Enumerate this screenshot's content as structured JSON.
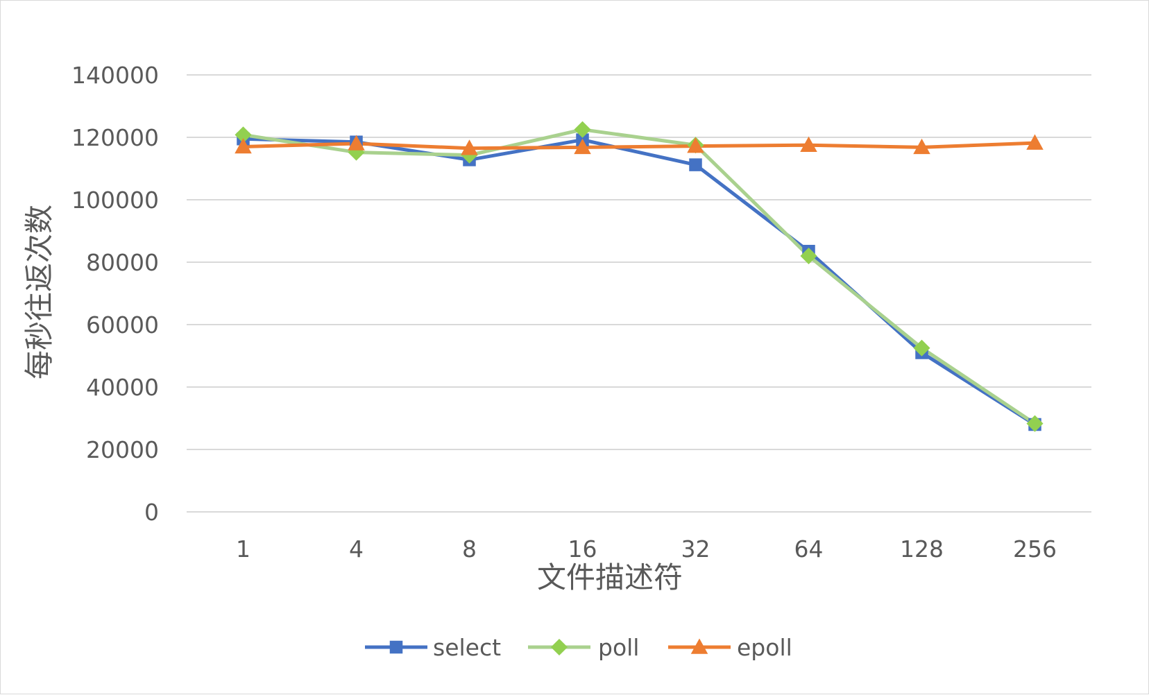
{
  "chart_data": {
    "type": "line",
    "title": "",
    "xlabel": "文件描述符",
    "ylabel": "每秒往返次数",
    "categories": [
      "1",
      "4",
      "8",
      "16",
      "32",
      "64",
      "128",
      "256"
    ],
    "ylim": [
      0,
      140000
    ],
    "yticks": [
      "0",
      "20000",
      "40000",
      "60000",
      "80000",
      "100000",
      "120000",
      "140000"
    ],
    "grid": true,
    "legend_position": "bottom",
    "series": [
      {
        "name": "select",
        "color": "#4472c4",
        "marker": "square",
        "values": [
          119500,
          118500,
          112800,
          119200,
          111200,
          83500,
          51000,
          28000
        ]
      },
      {
        "name": "poll",
        "color": "#a9d18e",
        "marker_color": "#92d050",
        "marker": "diamond",
        "values": [
          120800,
          115200,
          114300,
          122500,
          117500,
          82000,
          52500,
          28300
        ]
      },
      {
        "name": "epoll",
        "color": "#ed7d31",
        "marker": "triangle",
        "values": [
          117000,
          118000,
          116500,
          116800,
          117200,
          117500,
          116800,
          118200
        ]
      }
    ]
  }
}
